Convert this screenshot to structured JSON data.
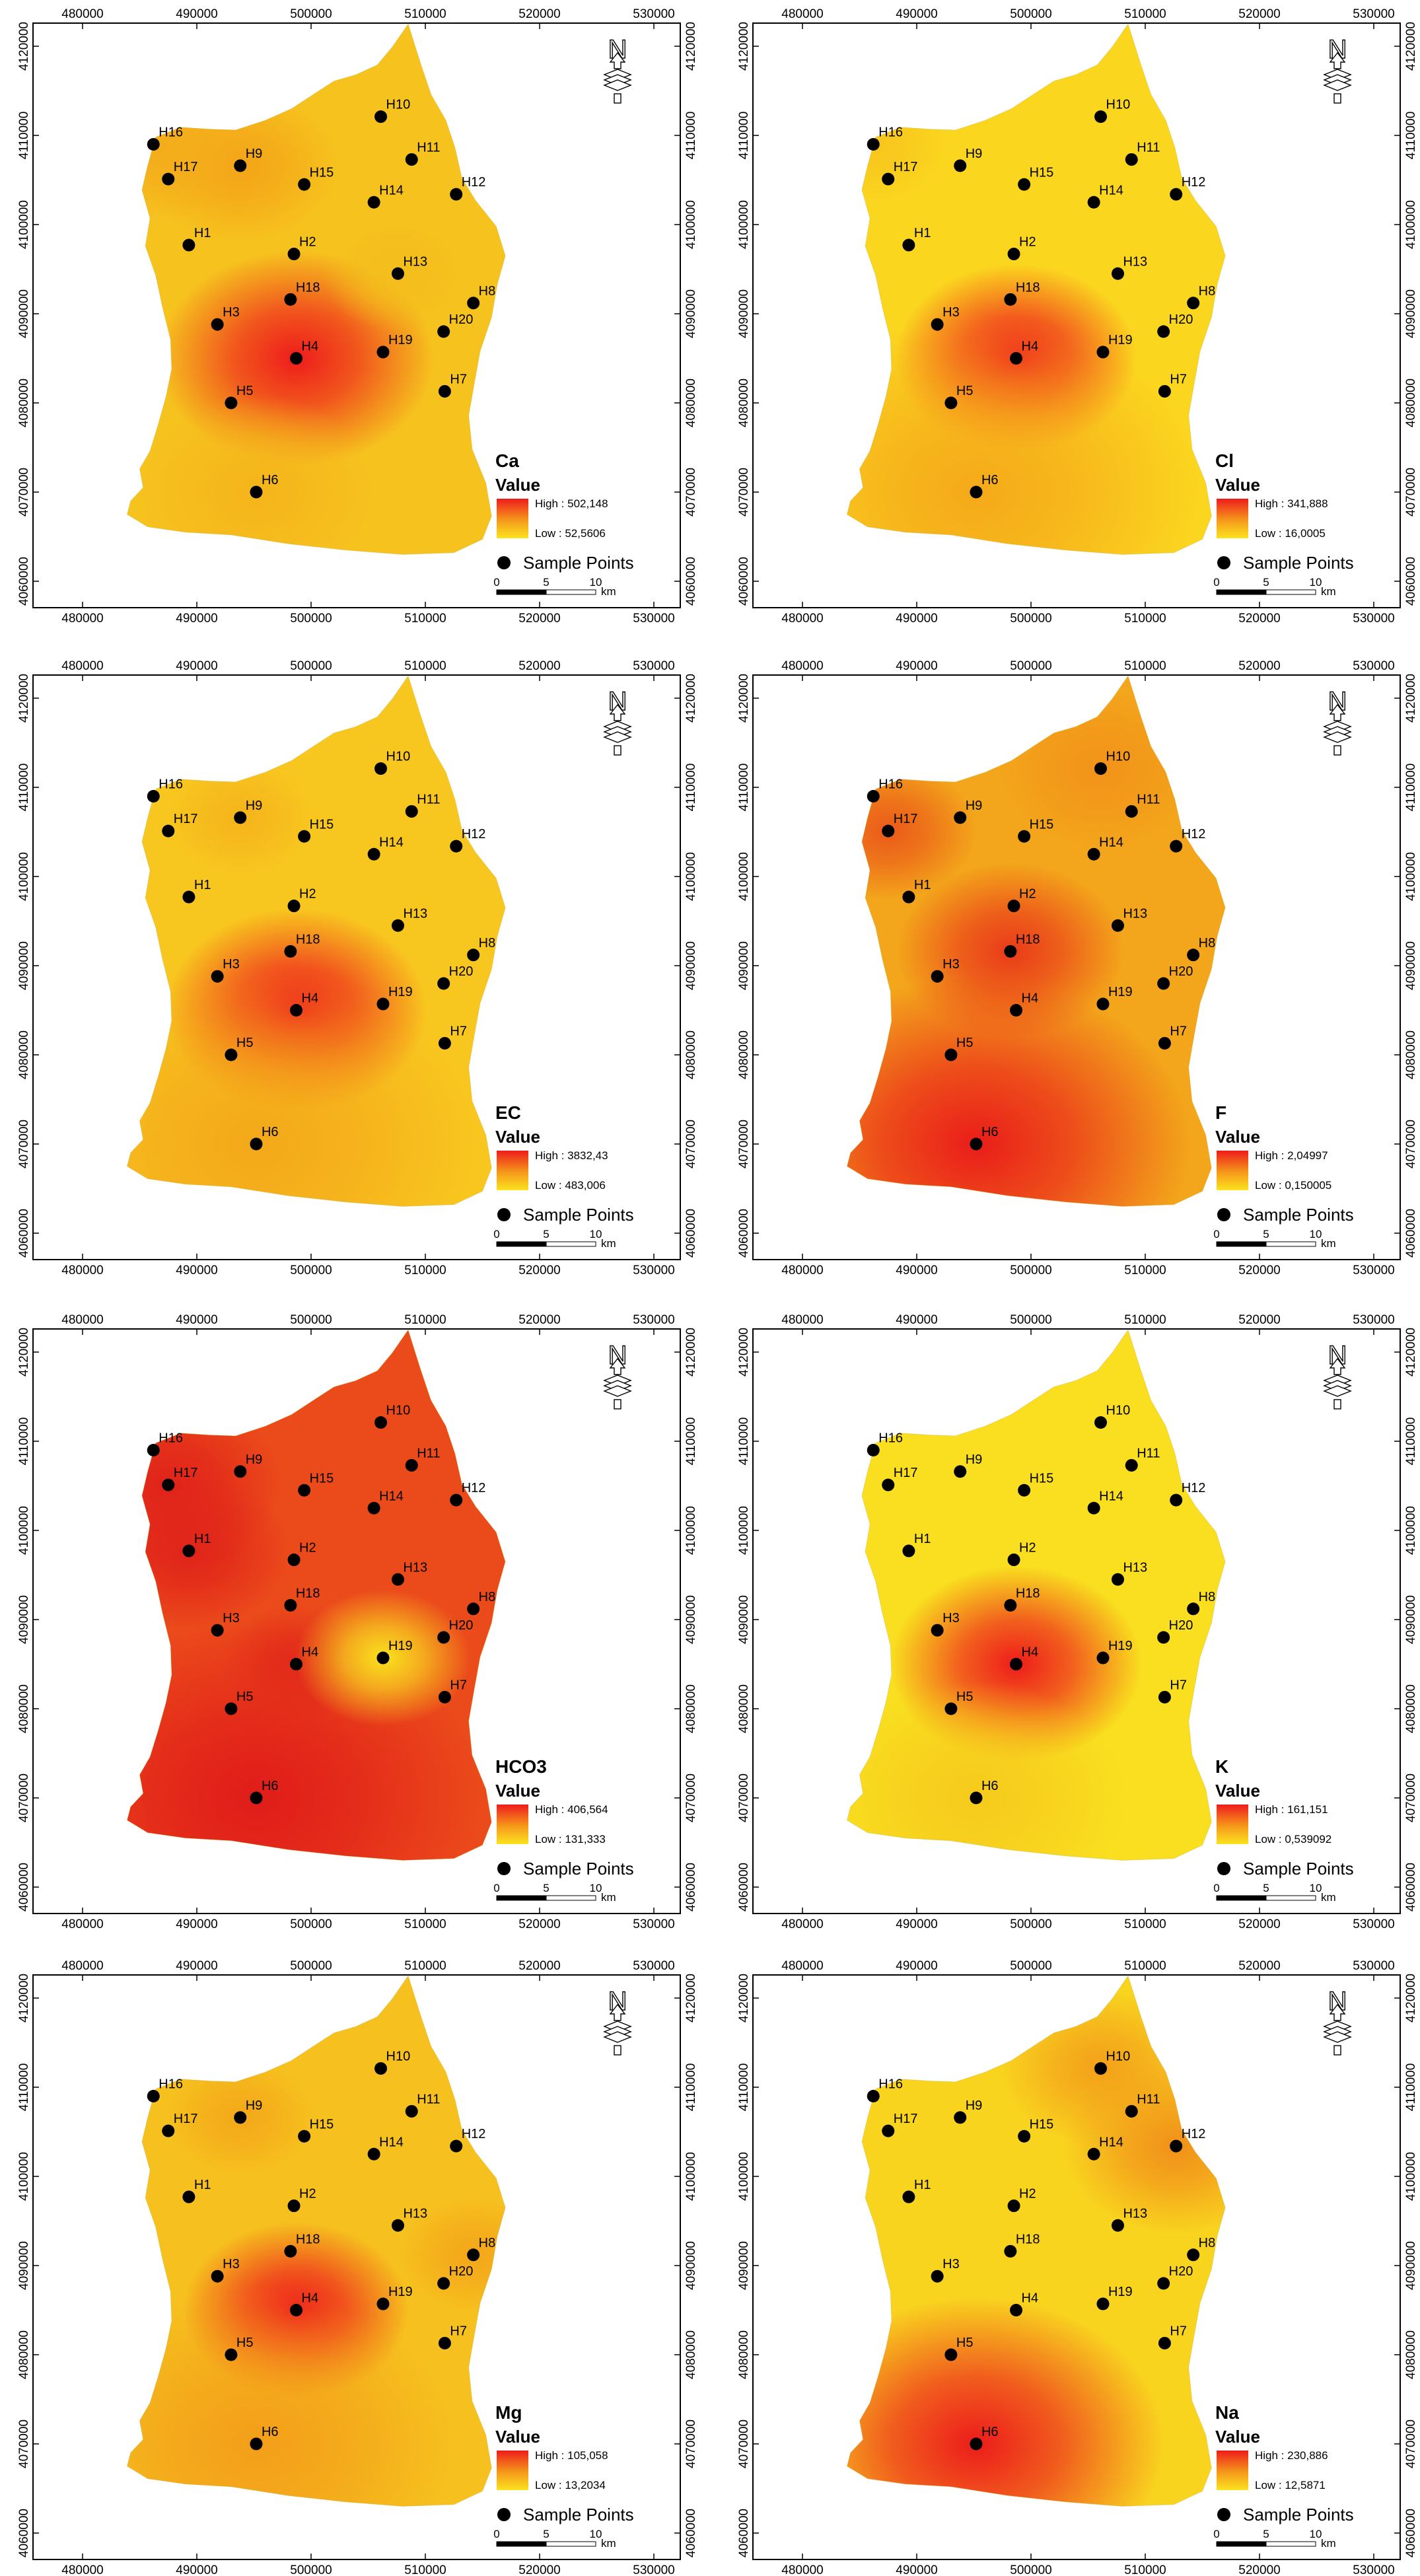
{
  "x_ticks": [
    "480000",
    "490000",
    "500000",
    "510000",
    "520000",
    "530000"
  ],
  "y_ticks": [
    "4120000",
    "4110000",
    "4100000",
    "4090000",
    "4080000",
    "4070000",
    "4060000"
  ],
  "north_label": "N",
  "legend": {
    "value_title": "Value",
    "sample_points_label": "Sample Points",
    "scale_ticks": [
      "0",
      "5",
      "10"
    ],
    "scale_unit": "km"
  },
  "sample_points": [
    {
      "id": "H1",
      "x": 489300,
      "y": 4097700
    },
    {
      "id": "H2",
      "x": 498500,
      "y": 4096700
    },
    {
      "id": "H3",
      "x": 491800,
      "y": 4088800
    },
    {
      "id": "H4",
      "x": 498700,
      "y": 4085000
    },
    {
      "id": "H5",
      "x": 493000,
      "y": 4080000
    },
    {
      "id": "H6",
      "x": 495200,
      "y": 4070000
    },
    {
      "id": "H7",
      "x": 511700,
      "y": 4081300
    },
    {
      "id": "H8",
      "x": 514200,
      "y": 4091200
    },
    {
      "id": "H9",
      "x": 493800,
      "y": 4106600
    },
    {
      "id": "H10",
      "x": 506100,
      "y": 4112100
    },
    {
      "id": "H11",
      "x": 508800,
      "y": 4107300
    },
    {
      "id": "H12",
      "x": 512700,
      "y": 4103400
    },
    {
      "id": "H13",
      "x": 507600,
      "y": 4094500
    },
    {
      "id": "H14",
      "x": 505500,
      "y": 4102500
    },
    {
      "id": "H15",
      "x": 499400,
      "y": 4104500
    },
    {
      "id": "H16",
      "x": 486200,
      "y": 4109000
    },
    {
      "id": "H17",
      "x": 487500,
      "y": 4105100
    },
    {
      "id": "H18",
      "x": 498200,
      "y": 4091600
    },
    {
      "id": "H19",
      "x": 506300,
      "y": 4085700
    },
    {
      "id": "H20",
      "x": 511600,
      "y": 4088000
    }
  ],
  "maps": [
    {
      "param": "Ca",
      "high": "High : 502,148",
      "low": "Low : 52,5606",
      "base": "#f6c31e",
      "hotspots": [
        {
          "id": "H4",
          "r": 5500,
          "color": "#ee1c1c"
        },
        {
          "id": "H9",
          "r": 4000,
          "color": "#f4a418"
        },
        {
          "id": "H16",
          "r": 4000,
          "color": "#f4ab1b"
        },
        {
          "id": "H6",
          "r": 5000,
          "color": "#f5b51c"
        },
        {
          "id": "H13",
          "r": 3000,
          "color": "#f4bd1c"
        }
      ]
    },
    {
      "param": "Cl",
      "high": "High : 341,888",
      "low": "Low : 16,0005",
      "base": "#fbd61f",
      "hotspots": [
        {
          "id": "H4",
          "r": 4800,
          "color": "#ef1d1d"
        },
        {
          "id": "H6",
          "r": 9000,
          "color": "#f5a91a"
        },
        {
          "id": "H16",
          "r": 3000,
          "color": "#f7c51d"
        }
      ]
    },
    {
      "param": "EC",
      "high": "High : 3832,43",
      "low": "Low : 483,006",
      "base": "#f8c71f",
      "hotspots": [
        {
          "id": "H4",
          "r": 5200,
          "color": "#ee1c1c"
        },
        {
          "id": "H6",
          "r": 9000,
          "color": "#f4a81a"
        },
        {
          "id": "H9",
          "r": 3000,
          "color": "#f5b41c"
        }
      ]
    },
    {
      "param": "F",
      "high": "High : 2,04997",
      "low": "Low : 0,150005",
      "base": "#f3a51b",
      "hotspots": [
        {
          "id": "H6",
          "r": 8500,
          "color": "#ea1d1a"
        },
        {
          "id": "H18",
          "r": 4500,
          "color": "#ea3a1a"
        },
        {
          "id": "H17",
          "r": 3500,
          "color": "#eb5a1a"
        },
        {
          "id": "H10",
          "r": 4000,
          "color": "#f2931a"
        }
      ]
    },
    {
      "param": "HCO3",
      "high": "High : 406,564",
      "low": "Low : 131,333",
      "base": "#eb4a1b",
      "hotspots": [
        {
          "id": "H17",
          "r": 4500,
          "color": "#e0221a"
        },
        {
          "id": "H1",
          "r": 4000,
          "color": "#e0231a"
        },
        {
          "id": "H6",
          "r": 9000,
          "color": "#e01c1a"
        },
        {
          "id": "H4",
          "r": 3000,
          "color": "#e22a1a"
        },
        {
          "id": "H19",
          "r": 3500,
          "color": "#fae11f"
        }
      ]
    },
    {
      "param": "K",
      "high": "High : 161,151",
      "low": "Low : 0,539092",
      "base": "#f9df1f",
      "hotspots": [
        {
          "id": "H4",
          "r": 5000,
          "color": "#ee1c1c"
        },
        {
          "id": "H6",
          "r": 6000,
          "color": "#f6ca1d"
        }
      ]
    },
    {
      "param": "Mg",
      "high": "High : 105,058",
      "low": "Low : 13,2034",
      "base": "#f6c11e",
      "hotspots": [
        {
          "id": "H4",
          "r": 4500,
          "color": "#ee1c1c"
        },
        {
          "id": "H6",
          "r": 8000,
          "color": "#f39e1a"
        },
        {
          "id": "H9",
          "r": 3000,
          "color": "#f4a81a"
        },
        {
          "id": "H8",
          "r": 3000,
          "color": "#f4a61a"
        }
      ]
    },
    {
      "param": "Na",
      "high": "High : 230,886",
      "low": "Low : 12,5871",
      "base": "#f9d41f",
      "hotspots": [
        {
          "id": "H6",
          "r": 7500,
          "color": "#ec1c1c"
        },
        {
          "id": "H12",
          "r": 4500,
          "color": "#f1901a"
        },
        {
          "id": "H10",
          "r": 4000,
          "color": "#f3a01a"
        }
      ]
    }
  ]
}
